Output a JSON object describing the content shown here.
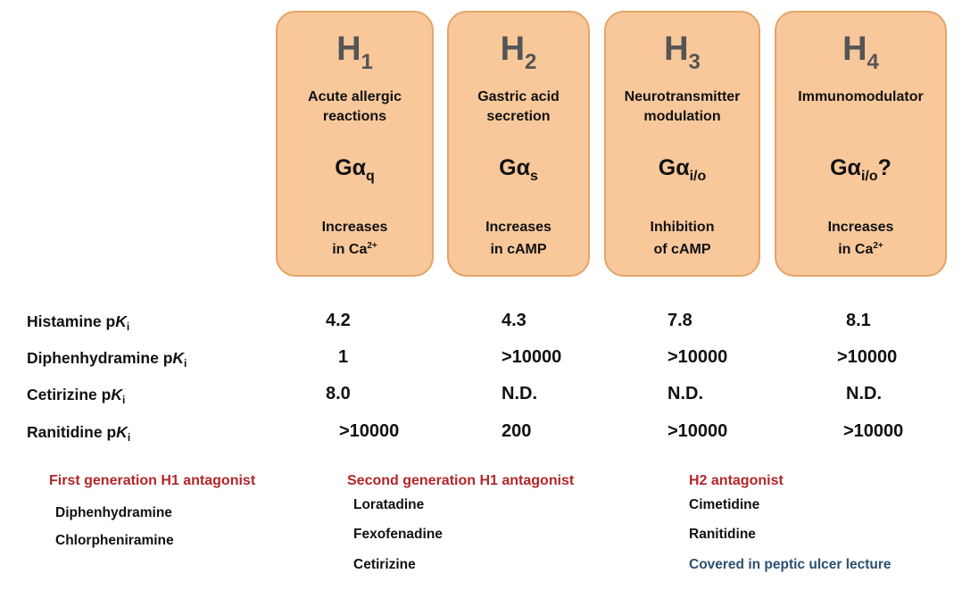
{
  "receptors": [
    {
      "letter": "H",
      "num": "1",
      "function_lines": [
        "Acute allergic",
        "reactions"
      ],
      "g_sub": "q",
      "g_suffix": "",
      "effect_l1": "Increases",
      "effect_l2": "in Ca",
      "effect_sup": "2+"
    },
    {
      "letter": "H",
      "num": "2",
      "function_lines": [
        "Gastric acid",
        "secretion"
      ],
      "g_sub": "s",
      "g_suffix": "",
      "effect_l1": "Increases",
      "effect_l2": "in cAMP",
      "effect_sup": ""
    },
    {
      "letter": "H",
      "num": "3",
      "function_lines": [
        "Neurotransmitter",
        "modulation"
      ],
      "g_sub": "i/o",
      "g_suffix": "",
      "effect_l1": "Inhibition",
      "effect_l2": "of cAMP",
      "effect_sup": ""
    },
    {
      "letter": "H",
      "num": "4",
      "function_lines": [
        "Immunomodulator",
        ""
      ],
      "g_sub": "i/o",
      "g_suffix": "?",
      "effect_l1": "Increases",
      "effect_l2": "in Ca",
      "effect_sup": "2+"
    }
  ],
  "g_symbol": "Gα",
  "pk_label": "p",
  "pk_k": "K",
  "pk_sub": "i",
  "rows": [
    {
      "drug": "Histamine",
      "values": [
        "4.2",
        "4.3",
        "7.8",
        "8.1"
      ]
    },
    {
      "drug": "Diphenhydramine",
      "values": [
        "1",
        ">10000",
        ">10000",
        ">10000"
      ]
    },
    {
      "drug": "Cetirizine",
      "values": [
        "8.0",
        "N.D.",
        "N.D.",
        "N.D."
      ]
    },
    {
      "drug": "Ranitidine",
      "values": [
        ">10000",
        "200",
        ">10000",
        ">10000"
      ]
    }
  ],
  "groups": [
    {
      "heading": "First generation H1 antagonist",
      "items": [
        "Diphenhydramine",
        "Chlorpheniramine"
      ],
      "note": ""
    },
    {
      "heading": "Second generation H1 antagonist",
      "items": [
        "Loratadine",
        "Fexofenadine",
        "Cetirizine"
      ],
      "note": ""
    },
    {
      "heading": "H2 antagonist",
      "items": [
        "Cimetidine",
        "Ranitidine"
      ],
      "note": "Covered in peptic ulcer lecture"
    }
  ],
  "colors": {
    "card_fill": "#f8c89b",
    "card_border": "#e3a468",
    "heading_red": "#b3262a",
    "note_blue": "#2c4f73"
  }
}
